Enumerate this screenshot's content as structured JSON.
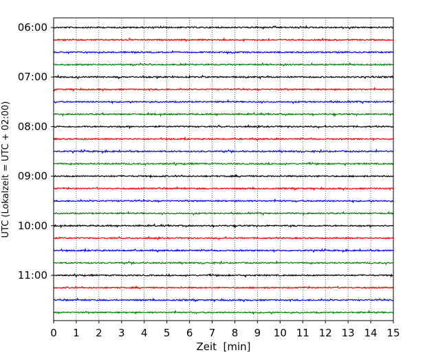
{
  "chart_data": {
    "type": "line",
    "title": "",
    "xlabel": "Zeit  [min]",
    "ylabel": "UTC (Lokalzeit = UTC + 02:00)",
    "xlim": [
      0,
      15
    ],
    "x_ticks": [
      0,
      1,
      2,
      3,
      4,
      5,
      6,
      7,
      8,
      9,
      10,
      11,
      12,
      13,
      14,
      15
    ],
    "x_tick_labels": [
      "0",
      "1",
      "2",
      "3",
      "4",
      "5",
      "6",
      "7",
      "8",
      "9",
      "10",
      "11",
      "12",
      "13",
      "14",
      "15"
    ],
    "y_tick_labels": [
      "06:00",
      "07:00",
      "08:00",
      "09:00",
      "10:00",
      "11:00"
    ],
    "grid": "vertical dotted",
    "trace_interval_minutes": 15,
    "color_cycle": [
      "#000000",
      "#ff0000",
      "#0000ff",
      "#008000"
    ],
    "traces": [
      {
        "start": "06:00"
      },
      {
        "start": "06:15"
      },
      {
        "start": "06:30"
      },
      {
        "start": "06:45"
      },
      {
        "start": "07:00"
      },
      {
        "start": "07:15"
      },
      {
        "start": "07:30"
      },
      {
        "start": "07:45"
      },
      {
        "start": "08:00"
      },
      {
        "start": "08:15"
      },
      {
        "start": "08:30"
      },
      {
        "start": "08:45"
      },
      {
        "start": "09:00"
      },
      {
        "start": "09:15"
      },
      {
        "start": "09:30"
      },
      {
        "start": "09:45"
      },
      {
        "start": "10:00"
      },
      {
        "start": "10:15"
      },
      {
        "start": "10:30"
      },
      {
        "start": "10:45"
      },
      {
        "start": "11:00"
      },
      {
        "start": "11:15"
      },
      {
        "start": "11:30"
      },
      {
        "start": "11:45"
      }
    ]
  }
}
